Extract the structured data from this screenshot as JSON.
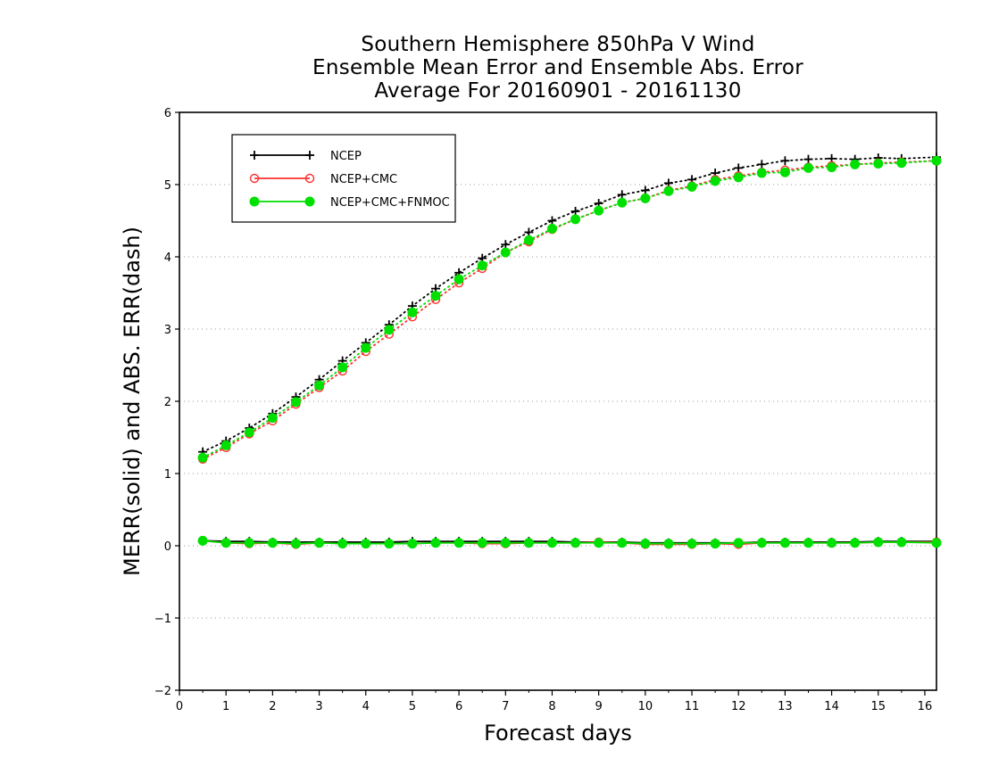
{
  "chart_data": {
    "type": "line",
    "title_lines": [
      "Southern Hemisphere 850hPa V Wind",
      "Ensemble Mean Error and Ensemble Abs. Error",
      "Average For 20160901 - 20161130"
    ],
    "xlabel": "Forecast days",
    "ylabel": "MERR(solid) and ABS. ERR(dash)",
    "xlim": [
      0,
      16.25
    ],
    "ylim": [
      -2,
      6
    ],
    "xticks": [
      "0",
      "1",
      "2",
      "3",
      "4",
      "5",
      "6",
      "7",
      "8",
      "9",
      "10",
      "11",
      "12",
      "13",
      "14",
      "15",
      "16"
    ],
    "yticks": [
      "-2",
      "-1",
      "0",
      "1",
      "2",
      "3",
      "4",
      "5",
      "6"
    ],
    "grid": "horizontal dotted",
    "legend_position": "top-left",
    "x": [
      0.5,
      1,
      1.5,
      2,
      2.5,
      3,
      3.5,
      4,
      4.5,
      5,
      5.5,
      6,
      6.5,
      7,
      7.5,
      8,
      8.5,
      9,
      9.5,
      10,
      10.5,
      11,
      11.5,
      12,
      12.5,
      13,
      13.5,
      14,
      14.5,
      15,
      15.5,
      16.25
    ],
    "series": [
      {
        "name": "NCEP",
        "color": "#000000",
        "marker": "plus",
        "abs_err": [
          1.3,
          1.45,
          1.63,
          1.83,
          2.06,
          2.3,
          2.56,
          2.81,
          3.06,
          3.32,
          3.56,
          3.78,
          3.98,
          4.17,
          4.34,
          4.5,
          4.63,
          4.74,
          4.86,
          4.92,
          5.02,
          5.07,
          5.16,
          5.23,
          5.28,
          5.33,
          5.35,
          5.36,
          5.35,
          5.37,
          5.36,
          5.38
        ],
        "mean_err": [
          0.07,
          0.06,
          0.06,
          0.05,
          0.05,
          0.05,
          0.05,
          0.05,
          0.05,
          0.06,
          0.06,
          0.06,
          0.06,
          0.06,
          0.06,
          0.06,
          0.05,
          0.05,
          0.05,
          0.04,
          0.04,
          0.04,
          0.04,
          0.04,
          0.05,
          0.05,
          0.05,
          0.05,
          0.05,
          0.06,
          0.06,
          0.06
        ]
      },
      {
        "name": "NCEP+CMC",
        "color": "#ff3030",
        "marker": "open-circle",
        "abs_err": [
          1.2,
          1.36,
          1.55,
          1.73,
          1.96,
          2.19,
          2.42,
          2.69,
          2.93,
          3.17,
          3.41,
          3.64,
          3.84,
          4.06,
          4.21,
          4.38,
          4.52,
          4.64,
          4.75,
          4.81,
          4.92,
          4.98,
          5.07,
          5.12,
          5.17,
          5.2,
          5.24,
          5.26,
          5.28,
          5.3,
          5.31,
          5.33
        ],
        "mean_err": [
          0.07,
          0.04,
          0.03,
          0.04,
          0.02,
          0.04,
          0.03,
          0.03,
          0.03,
          0.03,
          0.04,
          0.04,
          0.03,
          0.03,
          0.04,
          0.04,
          0.04,
          0.05,
          0.04,
          0.02,
          0.02,
          0.02,
          0.03,
          0.02,
          0.04,
          0.04,
          0.04,
          0.04,
          0.04,
          0.05,
          0.05,
          0.05
        ]
      },
      {
        "name": "NCEP+CMC+FNMOC",
        "color": "#00e000",
        "marker": "filled-circle",
        "abs_err": [
          1.22,
          1.39,
          1.57,
          1.77,
          1.99,
          2.22,
          2.47,
          2.74,
          2.99,
          3.23,
          3.46,
          3.69,
          3.88,
          4.06,
          4.23,
          4.39,
          4.52,
          4.64,
          4.75,
          4.81,
          4.91,
          4.97,
          5.05,
          5.1,
          5.16,
          5.17,
          5.23,
          5.24,
          5.28,
          5.29,
          5.3,
          5.33
        ],
        "mean_err": [
          0.07,
          0.04,
          0.04,
          0.04,
          0.03,
          0.04,
          0.03,
          0.03,
          0.03,
          0.03,
          0.04,
          0.04,
          0.04,
          0.04,
          0.04,
          0.04,
          0.04,
          0.04,
          0.04,
          0.03,
          0.03,
          0.03,
          0.03,
          0.04,
          0.04,
          0.04,
          0.04,
          0.04,
          0.04,
          0.05,
          0.05,
          0.04
        ]
      }
    ]
  }
}
